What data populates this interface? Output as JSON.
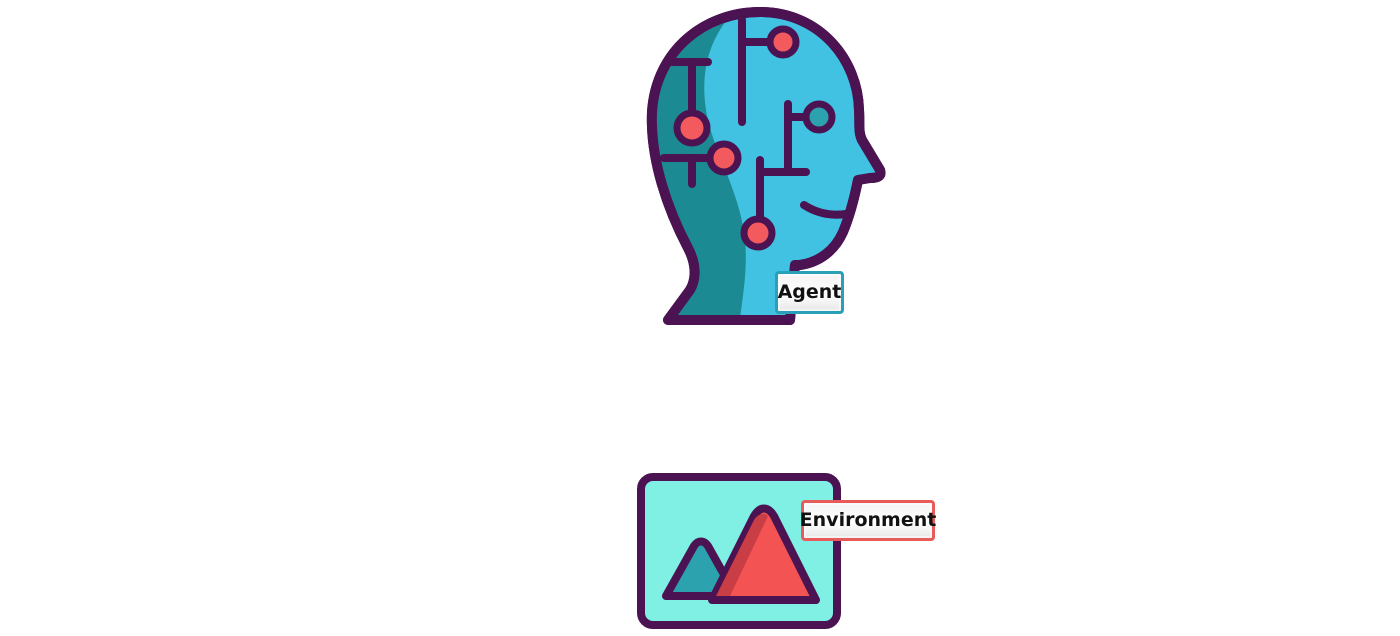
{
  "nodes": {
    "agent": {
      "label": "Agent",
      "icon": "ai-head-circuit-icon"
    },
    "environment": {
      "label": "Environment",
      "icon": "mountain-landscape-icon"
    }
  },
  "colors": {
    "outline": "#4b1352",
    "head_fill": "#41c2e2",
    "head_shadow": "#1c8a93",
    "node_red": "#f25a5d",
    "env_bg": "#7ff0e3",
    "mountain_red": "#f35353",
    "mountain_dark": "#c93d45",
    "mountain_teal": "#2ba2ad",
    "agent_label_border": "#2aa0b8",
    "environment_label_border": "#e85b5b"
  }
}
